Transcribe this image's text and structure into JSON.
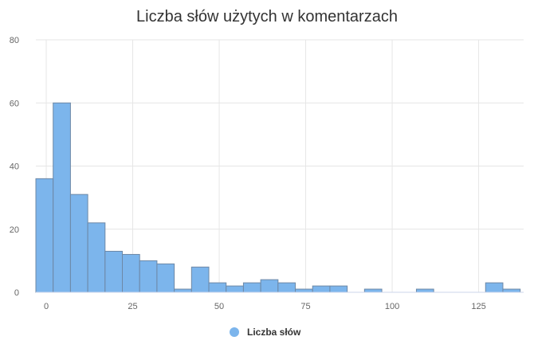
{
  "chart_data": {
    "type": "bar",
    "title": "Liczba słów użytych w komentarzach",
    "xlabel": "",
    "ylabel": "",
    "xlim": [
      -3,
      138
    ],
    "ylim": [
      0,
      80
    ],
    "x_ticks": [
      0,
      25,
      50,
      75,
      100,
      125
    ],
    "y_ticks": [
      0,
      20,
      40,
      60,
      80
    ],
    "bin_width": 5,
    "grid": true,
    "legend_position": "bottom",
    "series": [
      {
        "name": "Liczba słów",
        "color": "#7cb5ec",
        "bins": [
          {
            "start": -3,
            "value": 36
          },
          {
            "start": 2,
            "value": 60
          },
          {
            "start": 7,
            "value": 31
          },
          {
            "start": 12,
            "value": 22
          },
          {
            "start": 17,
            "value": 13
          },
          {
            "start": 22,
            "value": 12
          },
          {
            "start": 27,
            "value": 10
          },
          {
            "start": 32,
            "value": 9
          },
          {
            "start": 37,
            "value": 1
          },
          {
            "start": 42,
            "value": 8
          },
          {
            "start": 47,
            "value": 3
          },
          {
            "start": 52,
            "value": 2
          },
          {
            "start": 57,
            "value": 3
          },
          {
            "start": 62,
            "value": 4
          },
          {
            "start": 67,
            "value": 3
          },
          {
            "start": 72,
            "value": 1
          },
          {
            "start": 77,
            "value": 2
          },
          {
            "start": 82,
            "value": 2
          },
          {
            "start": 92,
            "value": 1
          },
          {
            "start": 107,
            "value": 1
          },
          {
            "start": 127,
            "value": 3
          },
          {
            "start": 132,
            "value": 1
          }
        ]
      }
    ]
  }
}
